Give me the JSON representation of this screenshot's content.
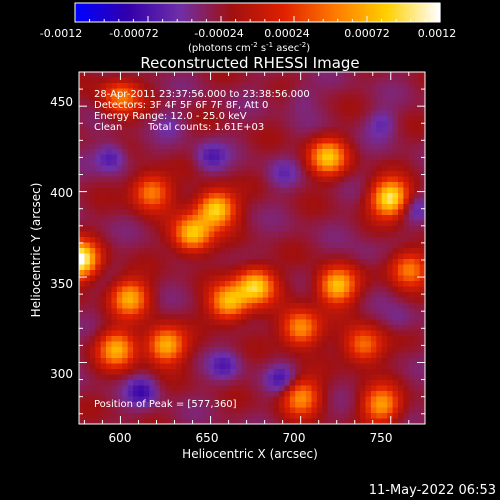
{
  "colorbar": {
    "tick_labels": [
      "-0.0012",
      "-0.00072",
      "-0.00024",
      "0.00024",
      "0.00072",
      "0.0012"
    ],
    "range": [
      -0.0012,
      0.0012
    ],
    "unit_label": "(photons cm",
    "unit_exp1": "-2",
    "unit_mid1": " s",
    "unit_exp2": "-1",
    "unit_mid2": " asec",
    "unit_exp3": "-2",
    "unit_end": ")"
  },
  "chart_data": {
    "type": "heatmap",
    "title": "Reconstructed RHESSI Image",
    "xlabel": "Heliocentric X (arcsec)",
    "ylabel": "Heliocentric Y (arcsec)",
    "xlim": [
      577,
      769
    ],
    "ylim": [
      264,
      470
    ],
    "x_ticks": [
      600,
      650,
      700,
      750
    ],
    "y_ticks": [
      300,
      350,
      400,
      450
    ],
    "x_tick_labels": [
      "600",
      "650",
      "700",
      "750"
    ],
    "y_tick_labels": [
      "300",
      "350",
      "400",
      "450"
    ],
    "grid": false,
    "colormap": [
      "#0000ff",
      "#3200aa",
      "#6f2fa8",
      "#a01010",
      "#e02000",
      "#ff7a00",
      "#ffd000",
      "#ffffff"
    ],
    "peak_position": [
      577,
      360
    ],
    "hot_spots": [
      {
        "x": 577,
        "y": 360,
        "value": 0.0012
      },
      {
        "x": 750,
        "y": 396,
        "value": 0.00105
      },
      {
        "x": 653,
        "y": 390,
        "value": 0.00095
      },
      {
        "x": 675,
        "y": 345,
        "value": 0.0009
      },
      {
        "x": 720,
        "y": 345,
        "value": 0.00085
      },
      {
        "x": 640,
        "y": 375,
        "value": 0.00085
      },
      {
        "x": 625,
        "y": 310,
        "value": 0.0008
      },
      {
        "x": 660,
        "y": 335,
        "value": 0.0008
      },
      {
        "x": 715,
        "y": 420,
        "value": 0.00075
      },
      {
        "x": 700,
        "y": 320,
        "value": 0.0007
      },
      {
        "x": 605,
        "y": 338,
        "value": 0.0007
      },
      {
        "x": 598,
        "y": 308,
        "value": 0.0007
      },
      {
        "x": 745,
        "y": 275,
        "value": 0.00065
      },
      {
        "x": 700,
        "y": 280,
        "value": 0.0006
      },
      {
        "x": 760,
        "y": 355,
        "value": 0.00055
      },
      {
        "x": 735,
        "y": 310,
        "value": 0.00055
      },
      {
        "x": 617,
        "y": 400,
        "value": 0.0006
      },
      {
        "x": 600,
        "y": 455,
        "value": 0.0005
      }
    ],
    "cold_spots": [
      {
        "x": 595,
        "y": 420,
        "value": -0.00072
      },
      {
        "x": 612,
        "y": 283,
        "value": -0.00072
      },
      {
        "x": 650,
        "y": 420,
        "value": -0.00065
      },
      {
        "x": 658,
        "y": 298,
        "value": -0.0006
      },
      {
        "x": 690,
        "y": 290,
        "value": -0.0007
      },
      {
        "x": 762,
        "y": 390,
        "value": -0.0006
      },
      {
        "x": 745,
        "y": 440,
        "value": -0.00055
      },
      {
        "x": 690,
        "y": 410,
        "value": -0.0005
      },
      {
        "x": 755,
        "y": 325,
        "value": -0.00045
      },
      {
        "x": 700,
        "y": 455,
        "value": -0.00045
      },
      {
        "x": 628,
        "y": 440,
        "value": -0.00045
      },
      {
        "x": 735,
        "y": 362,
        "value": -0.0004
      }
    ],
    "annotations": {
      "time_range": "28-Apr-2011 23:37:56.000 to 23:38:56.000",
      "detectors": "Detectors: 3F 4F 5F 6F 7F 8F, Att 0",
      "energy_range": "Energy Range: 12.0 - 25.0 keV",
      "method": "Clean",
      "total_counts": "Total counts: 1.61E+03",
      "peak": "Position of Peak = [577,360]"
    }
  },
  "footer": {
    "timestamp": "11-May-2022 06:53"
  }
}
